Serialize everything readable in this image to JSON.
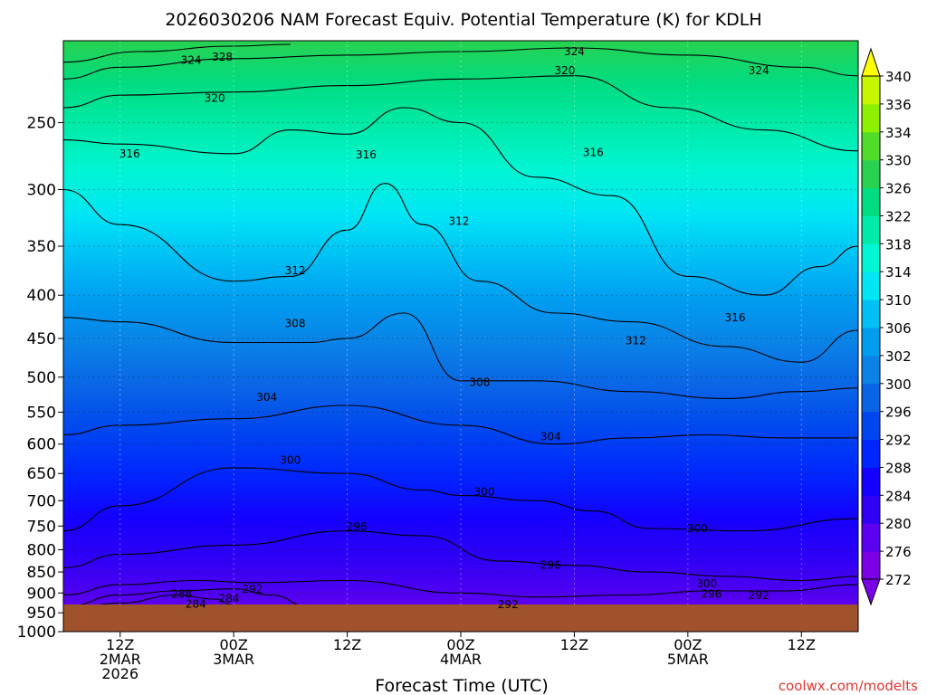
{
  "chart_data": {
    "type": "heatmap",
    "title": "2026030206 NAM Forecast Equiv. Potential Temperature (K) for KDLH",
    "xlabel": "Forecast Time (UTC)",
    "ylabel": "",
    "watermark": "coolwx.com/modelts",
    "y_ticks": [
      250,
      300,
      350,
      400,
      450,
      500,
      550,
      600,
      650,
      700,
      750,
      800,
      850,
      900,
      950,
      1000
    ],
    "y_range": [
      1000,
      200
    ],
    "x_range_hours": [
      6,
      90
    ],
    "x_ticks": [
      {
        "hour": 12,
        "lines": [
          "12Z",
          "2MAR",
          "2026"
        ]
      },
      {
        "hour": 24,
        "lines": [
          "00Z",
          "3MAR"
        ]
      },
      {
        "hour": 36,
        "lines": [
          "12Z"
        ]
      },
      {
        "hour": 48,
        "lines": [
          "00Z",
          "4MAR"
        ]
      },
      {
        "hour": 60,
        "lines": [
          "12Z"
        ]
      },
      {
        "hour": 72,
        "lines": [
          "00Z",
          "5MAR"
        ]
      },
      {
        "hour": 84,
        "lines": [
          "12Z"
        ]
      }
    ],
    "colorbar": {
      "levels": [
        272,
        276,
        280,
        284,
        288,
        292,
        296,
        300,
        302,
        306,
        310,
        314,
        318,
        322,
        326,
        330,
        334,
        336,
        340
      ],
      "colors": [
        "#7a00e6",
        "#5c00f0",
        "#3000f5",
        "#1400ff",
        "#0026ff",
        "#0046f0",
        "#0a64e6",
        "#0a82e6",
        "#009cf0",
        "#00c0f5",
        "#00e6f5",
        "#00f5d4",
        "#00ebaa",
        "#00dc82",
        "#28d250",
        "#50dc28",
        "#8cf000",
        "#c8f500",
        "#ffff00"
      ]
    },
    "contours": [
      {
        "label": "272",
        "profile": [
          [
            6,
            960
          ],
          [
            12,
            945
          ],
          [
            14,
            955
          ],
          [
            16,
            970
          ]
        ]
      },
      {
        "label": "284",
        "profile": [
          [
            6,
            945
          ],
          [
            12,
            925
          ],
          [
            18,
            905
          ],
          [
            22,
            915
          ],
          [
            24,
            930
          ],
          [
            26,
            945
          ]
        ]
      },
      {
        "label": "288",
        "profile": [
          [
            6,
            935
          ],
          [
            12,
            905
          ],
          [
            18,
            895
          ],
          [
            24,
            890
          ],
          [
            28,
            905
          ],
          [
            32,
            935
          ]
        ]
      },
      {
        "label": "292",
        "profile": [
          [
            6,
            905
          ],
          [
            12,
            880
          ],
          [
            20,
            870
          ],
          [
            26,
            875
          ],
          [
            36,
            870
          ],
          [
            48,
            900
          ],
          [
            56,
            910
          ],
          [
            66,
            905
          ],
          [
            74,
            895
          ],
          [
            82,
            895
          ],
          [
            90,
            880
          ]
        ]
      },
      {
        "label": "296",
        "profile": [
          [
            6,
            840
          ],
          [
            12,
            810
          ],
          [
            24,
            790
          ],
          [
            36,
            760
          ],
          [
            44,
            770
          ],
          [
            52,
            825
          ],
          [
            60,
            835
          ],
          [
            68,
            850
          ],
          [
            76,
            860
          ],
          [
            84,
            870
          ],
          [
            90,
            860
          ]
        ]
      },
      {
        "label": "300",
        "profile": [
          [
            6,
            760
          ],
          [
            12,
            710
          ],
          [
            24,
            640
          ],
          [
            36,
            650
          ],
          [
            44,
            680
          ],
          [
            48,
            690
          ],
          [
            56,
            700
          ],
          [
            62,
            720
          ],
          [
            68,
            755
          ],
          [
            78,
            760
          ],
          [
            90,
            735
          ]
        ]
      },
      {
        "label": "304",
        "profile": [
          [
            6,
            585
          ],
          [
            12,
            570
          ],
          [
            24,
            560
          ],
          [
            36,
            540
          ],
          [
            48,
            570
          ],
          [
            58,
            600
          ],
          [
            66,
            590
          ],
          [
            74,
            585
          ],
          [
            82,
            590
          ],
          [
            90,
            590
          ]
        ]
      },
      {
        "label": "308",
        "profile": [
          [
            6,
            425
          ],
          [
            12,
            430
          ],
          [
            24,
            455
          ],
          [
            32,
            455
          ],
          [
            36,
            450
          ],
          [
            42,
            420
          ],
          [
            48,
            505
          ],
          [
            56,
            505
          ],
          [
            66,
            520
          ],
          [
            76,
            530
          ],
          [
            84,
            520
          ],
          [
            90,
            515
          ]
        ]
      },
      {
        "label": "312",
        "profile": [
          [
            6,
            300
          ],
          [
            12,
            330
          ],
          [
            24,
            385
          ],
          [
            30,
            380
          ],
          [
            36,
            335
          ],
          [
            40,
            295
          ],
          [
            44,
            330
          ],
          [
            50,
            385
          ],
          [
            58,
            420
          ],
          [
            66,
            430
          ],
          [
            76,
            460
          ],
          [
            84,
            480
          ],
          [
            90,
            440
          ]
        ]
      },
      {
        "label": "316",
        "profile": [
          [
            6,
            262
          ],
          [
            12,
            265
          ],
          [
            24,
            272
          ],
          [
            30,
            255
          ],
          [
            36,
            258
          ],
          [
            42,
            240
          ],
          [
            48,
            250
          ],
          [
            56,
            290
          ],
          [
            64,
            305
          ],
          [
            72,
            380
          ],
          [
            80,
            400
          ],
          [
            86,
            370
          ],
          [
            90,
            350
          ]
        ]
      },
      {
        "label": "320",
        "profile": [
          [
            6,
            240
          ],
          [
            12,
            232
          ],
          [
            24,
            230
          ],
          [
            36,
            226
          ],
          [
            48,
            222
          ],
          [
            60,
            220
          ],
          [
            70,
            240
          ],
          [
            80,
            255
          ],
          [
            90,
            270
          ]
        ]
      },
      {
        "label": "324",
        "profile": [
          [
            6,
            222
          ],
          [
            12,
            215
          ],
          [
            24,
            210
          ],
          [
            36,
            208
          ],
          [
            48,
            206
          ],
          [
            60,
            204
          ],
          [
            72,
            208
          ],
          [
            84,
            215
          ],
          [
            90,
            220
          ]
        ]
      },
      {
        "label": "328",
        "profile": [
          [
            6,
            212
          ],
          [
            14,
            206
          ],
          [
            24,
            203
          ],
          [
            30,
            202
          ]
        ]
      }
    ],
    "contour_labels": [
      {
        "text": "324",
        "hour": 19.5,
        "pres": 211
      },
      {
        "text": "328",
        "hour": 22.8,
        "pres": 209
      },
      {
        "text": "324",
        "hour": 60,
        "pres": 206
      },
      {
        "text": "320",
        "hour": 59,
        "pres": 217
      },
      {
        "text": "324",
        "hour": 79.5,
        "pres": 217
      },
      {
        "text": "320",
        "hour": 22,
        "pres": 234
      },
      {
        "text": "316",
        "hour": 13,
        "pres": 272
      },
      {
        "text": "316",
        "hour": 38,
        "pres": 273
      },
      {
        "text": "316",
        "hour": 62,
        "pres": 271
      },
      {
        "text": "312",
        "hour": 47.8,
        "pres": 327
      },
      {
        "text": "312",
        "hour": 30.5,
        "pres": 374
      },
      {
        "text": "308",
        "hour": 30.5,
        "pres": 432
      },
      {
        "text": "316",
        "hour": 77,
        "pres": 425
      },
      {
        "text": "312",
        "hour": 66.5,
        "pres": 453
      },
      {
        "text": "308",
        "hour": 50,
        "pres": 507
      },
      {
        "text": "304",
        "hour": 27.5,
        "pres": 528
      },
      {
        "text": "304",
        "hour": 57.5,
        "pres": 588
      },
      {
        "text": "300",
        "hour": 30,
        "pres": 627
      },
      {
        "text": "300",
        "hour": 50.5,
        "pres": 683
      },
      {
        "text": "296",
        "hour": 37,
        "pres": 751
      },
      {
        "text": "300",
        "hour": 73,
        "pres": 755
      },
      {
        "text": "296",
        "hour": 57.5,
        "pres": 834
      },
      {
        "text": "300",
        "hour": 74,
        "pres": 878
      },
      {
        "text": "292",
        "hour": 26,
        "pres": 891
      },
      {
        "text": "288",
        "hour": 18.5,
        "pres": 903
      },
      {
        "text": "284",
        "hour": 23.5,
        "pres": 914
      },
      {
        "text": "296",
        "hour": 74.5,
        "pres": 903
      },
      {
        "text": "292",
        "hour": 79.5,
        "pres": 906
      },
      {
        "text": "284",
        "hour": 20,
        "pres": 928
      },
      {
        "text": "292",
        "hour": 53,
        "pres": 929
      }
    ]
  }
}
